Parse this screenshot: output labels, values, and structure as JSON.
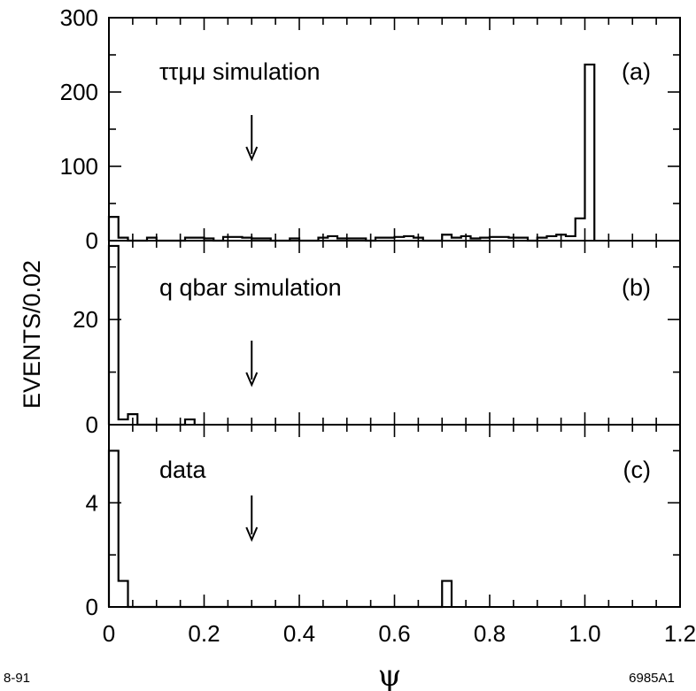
{
  "chart_data": {
    "type": "histogram",
    "ylabel": "EVENTS/0.02",
    "xlabel": "ψ",
    "xlim": [
      0,
      1.2
    ],
    "xticks": [
      0,
      0.2,
      0.4,
      0.6,
      0.8,
      1.0,
      1.2
    ],
    "xtick_labels": [
      "0",
      "0.2",
      "0.4",
      "0.6",
      "0.8",
      "1.0",
      "1.2"
    ],
    "bin_width": 0.02,
    "cut_value": 0.3,
    "footer_left": "8-91",
    "footer_right": "6985A1",
    "panels": [
      {
        "title": "ττμμ simulation",
        "tag": "(a)",
        "ylim": [
          0,
          300
        ],
        "yticks": [
          0,
          100,
          200,
          300
        ],
        "ytick_labels": [
          "0",
          "100",
          "200",
          "300"
        ],
        "bins": [
          [
            0.0,
            32
          ],
          [
            0.02,
            4
          ],
          [
            0.08,
            4
          ],
          [
            0.16,
            4
          ],
          [
            0.18,
            4
          ],
          [
            0.2,
            3
          ],
          [
            0.24,
            5
          ],
          [
            0.26,
            5
          ],
          [
            0.28,
            4
          ],
          [
            0.3,
            3
          ],
          [
            0.32,
            3
          ],
          [
            0.38,
            3
          ],
          [
            0.44,
            4
          ],
          [
            0.46,
            6
          ],
          [
            0.48,
            3
          ],
          [
            0.5,
            3
          ],
          [
            0.52,
            3
          ],
          [
            0.56,
            4
          ],
          [
            0.58,
            4
          ],
          [
            0.6,
            5
          ],
          [
            0.62,
            6
          ],
          [
            0.64,
            4
          ],
          [
            0.7,
            8
          ],
          [
            0.72,
            4
          ],
          [
            0.74,
            6
          ],
          [
            0.76,
            3
          ],
          [
            0.78,
            4
          ],
          [
            0.8,
            5
          ],
          [
            0.82,
            5
          ],
          [
            0.84,
            4
          ],
          [
            0.86,
            4
          ],
          [
            0.9,
            4
          ],
          [
            0.92,
            6
          ],
          [
            0.94,
            8
          ],
          [
            0.96,
            6
          ],
          [
            0.98,
            30
          ],
          [
            1.0,
            237
          ]
        ]
      },
      {
        "title": "q qbar simulation",
        "tag": "(b)",
        "ylim": [
          0,
          35
        ],
        "yticks": [
          0,
          20
        ],
        "ytick_labels": [
          "0",
          "20"
        ],
        "bins": [
          [
            0.0,
            34
          ],
          [
            0.02,
            1
          ],
          [
            0.04,
            2
          ],
          [
            0.16,
            1
          ]
        ]
      },
      {
        "title": "data",
        "tag": "(c)",
        "ylim": [
          0,
          7
        ],
        "yticks": [
          0,
          4
        ],
        "ytick_labels": [
          "0",
          "4"
        ],
        "bins": [
          [
            0.0,
            6
          ],
          [
            0.02,
            1
          ],
          [
            0.7,
            1
          ]
        ]
      }
    ]
  }
}
